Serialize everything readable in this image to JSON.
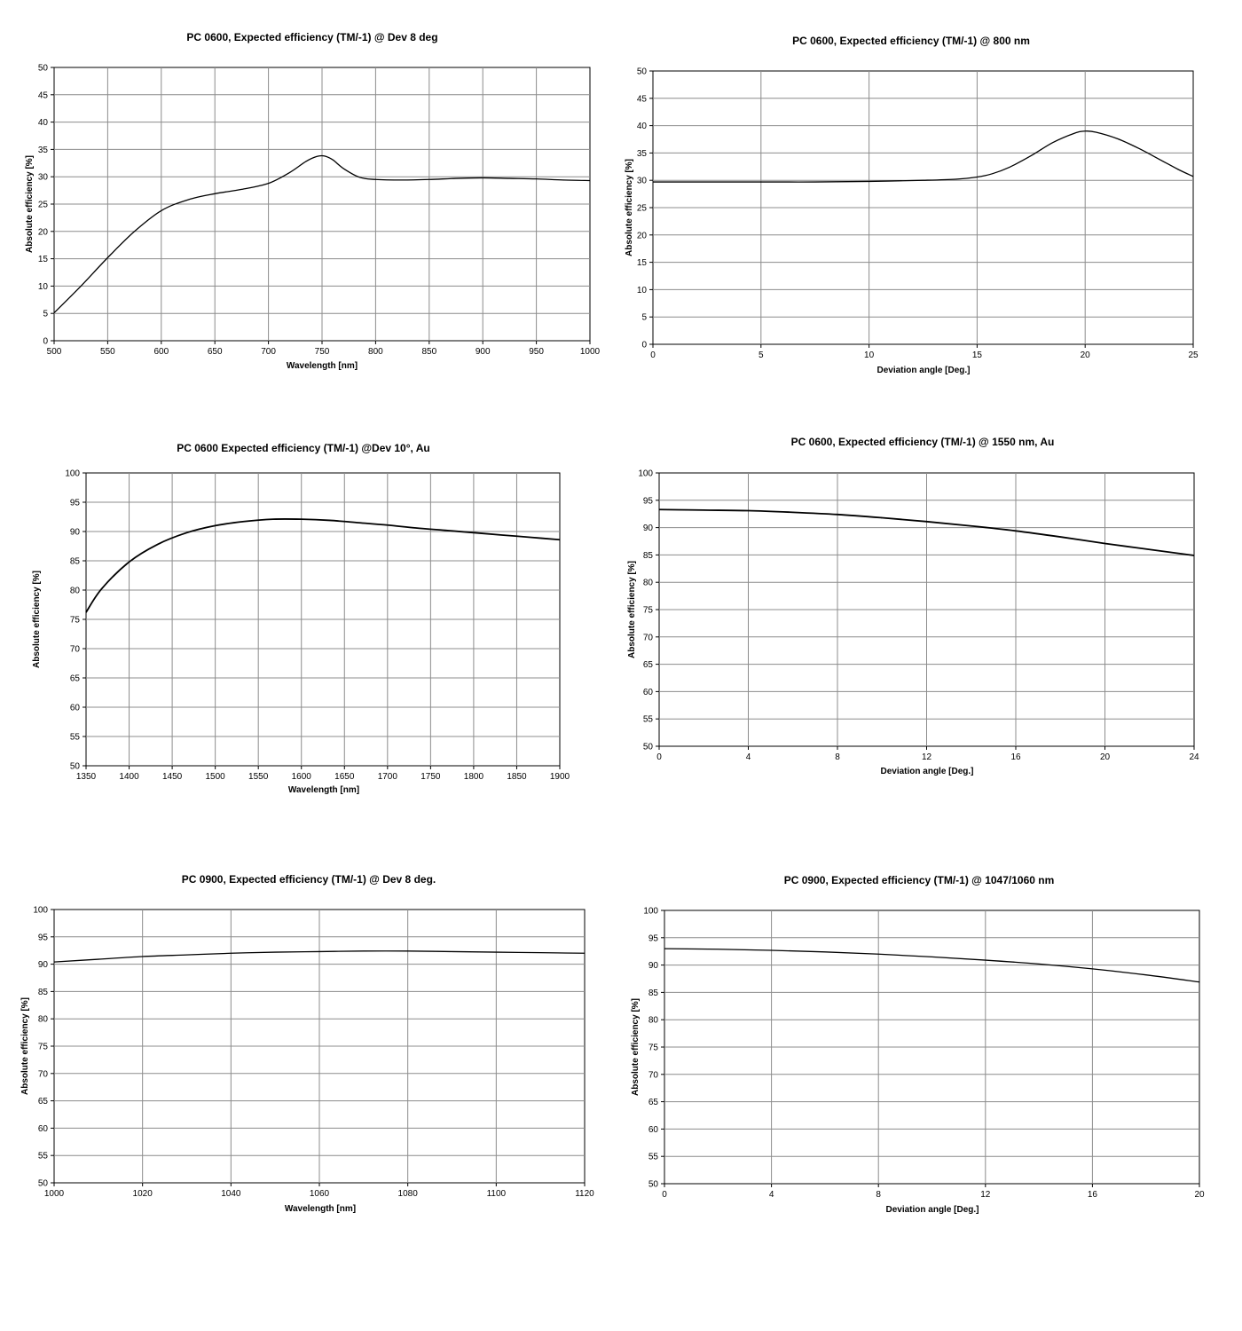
{
  "chart_data": [
    {
      "type": "line",
      "title": "PC 0600, Expected efficiency (TM/-1) @ Dev 8 deg",
      "xlabel": "Wavelength [nm]",
      "ylabel": "Absolute efficiency [%]",
      "xlim": [
        500,
        1000
      ],
      "ylim": [
        0,
        50
      ],
      "xticks": [
        "500",
        "550",
        "600",
        "650",
        "700",
        "750",
        "800",
        "850",
        "900",
        "950",
        "1000"
      ],
      "yticks": [
        "0",
        "5",
        "10",
        "15",
        "20",
        "25",
        "30",
        "35",
        "40",
        "45",
        "50"
      ],
      "grid": true,
      "series": [
        {
          "x": [
            500,
            525,
            550,
            575,
            600,
            625,
            650,
            675,
            700,
            720,
            735,
            745,
            752,
            760,
            770,
            785,
            800,
            825,
            850,
            875,
            900,
            925,
            950,
            975,
            1000
          ],
          "y": [
            5.1,
            10.0,
            15.2,
            20.0,
            23.8,
            25.8,
            26.9,
            27.7,
            28.8,
            30.8,
            32.8,
            33.7,
            33.8,
            33.1,
            31.5,
            29.9,
            29.5,
            29.4,
            29.5,
            29.7,
            29.8,
            29.7,
            29.6,
            29.4,
            29.3
          ]
        }
      ]
    },
    {
      "type": "line",
      "title": "PC 0600, Expected efficiency (TM/-1) @ 800 nm",
      "xlabel": "Deviation angle [Deg.]",
      "ylabel": "Absolute efficiency [%]",
      "xlim": [
        0,
        25
      ],
      "ylim": [
        0,
        50
      ],
      "xticks": [
        "0",
        "5",
        "10",
        "15",
        "20",
        "25"
      ],
      "yticks": [
        "0",
        "5",
        "10",
        "15",
        "20",
        "25",
        "30",
        "35",
        "40",
        "45",
        "50"
      ],
      "grid": true,
      "series": [
        {
          "x": [
            0,
            2.5,
            5,
            7.5,
            10,
            12.5,
            14,
            15,
            15.7,
            16.5,
            17.5,
            18.5,
            19.5,
            20,
            20.5,
            21.5,
            22.5,
            23.5,
            24.3,
            25
          ],
          "y": [
            29.7,
            29.7,
            29.7,
            29.7,
            29.8,
            30.0,
            30.2,
            30.6,
            31.2,
            32.4,
            34.5,
            36.9,
            38.6,
            39.0,
            38.8,
            37.6,
            35.8,
            33.7,
            32.0,
            30.7
          ]
        }
      ]
    },
    {
      "type": "line",
      "title": "PC 0600 Expected efficiency (TM/-1) @Dev 10°, Au",
      "xlabel": "Wavelength [nm]",
      "ylabel": "Absolute efficiency [%]",
      "xlim": [
        1350,
        1900
      ],
      "ylim": [
        50,
        100
      ],
      "xticks": [
        "1350",
        "1400",
        "1450",
        "1500",
        "1550",
        "1600",
        "1650",
        "1700",
        "1750",
        "1800",
        "1850",
        "1900"
      ],
      "yticks": [
        "50",
        "55",
        "60",
        "65",
        "70",
        "75",
        "80",
        "85",
        "90",
        "95",
        "100"
      ],
      "grid": true,
      "series": [
        {
          "x": [
            1350,
            1368,
            1400,
            1433,
            1467,
            1500,
            1533,
            1567,
            1600,
            1633,
            1667,
            1700,
            1733,
            1767,
            1800,
            1833,
            1867,
            1900
          ],
          "y": [
            76.2,
            80.2,
            84.8,
            87.8,
            89.8,
            91.0,
            91.7,
            92.1,
            92.1,
            91.9,
            91.5,
            91.1,
            90.6,
            90.2,
            89.8,
            89.4,
            89.0,
            88.6
          ]
        }
      ]
    },
    {
      "type": "line",
      "title": "PC 0600, Expected efficiency (TM/-1) @ 1550 nm, Au",
      "xlabel": "Deviation angle [Deg.]",
      "ylabel": "Absolute efficiency [%]",
      "xlim": [
        0,
        24
      ],
      "ylim": [
        50,
        100
      ],
      "xticks": [
        "0",
        "4",
        "8",
        "12",
        "16",
        "20",
        "24"
      ],
      "yticks": [
        "50",
        "55",
        "60",
        "65",
        "70",
        "75",
        "80",
        "85",
        "90",
        "95",
        "100"
      ],
      "grid": true,
      "series": [
        {
          "x": [
            0,
            2,
            4,
            6,
            8,
            10,
            12,
            14,
            16,
            18,
            20,
            22,
            24
          ],
          "y": [
            93.3,
            93.2,
            93.1,
            92.8,
            92.4,
            91.8,
            91.1,
            90.3,
            89.4,
            88.3,
            87.1,
            86.0,
            84.9
          ]
        }
      ]
    },
    {
      "type": "line",
      "title": "PC 0900, Expected efficiency (TM/-1) @ Dev 8 deg.",
      "xlabel": "Wavelength [nm]",
      "ylabel": "Absolute efficiency [%]",
      "xlim": [
        1000,
        1120
      ],
      "ylim": [
        50,
        100
      ],
      "xticks": [
        "1000",
        "1020",
        "1040",
        "1060",
        "1080",
        "1100",
        "1120"
      ],
      "yticks": [
        "50",
        "55",
        "60",
        "65",
        "70",
        "75",
        "80",
        "85",
        "90",
        "95",
        "100"
      ],
      "grid": true,
      "series": [
        {
          "x": [
            1000,
            1010,
            1020,
            1030,
            1040,
            1050,
            1060,
            1070,
            1080,
            1090,
            1100,
            1110,
            1120
          ],
          "y": [
            90.4,
            90.9,
            91.4,
            91.7,
            92.0,
            92.2,
            92.3,
            92.4,
            92.4,
            92.3,
            92.2,
            92.1,
            92.0
          ]
        }
      ]
    },
    {
      "type": "line",
      "title": "PC 0900, Expected efficiency (TM/-1) @ 1047/1060 nm",
      "xlabel": "Deviation angle [Deg.]",
      "ylabel": "Absolute efficiency [%]",
      "xlim": [
        0,
        20
      ],
      "ylim": [
        50,
        100
      ],
      "xticks": [
        "0",
        "4",
        "8",
        "12",
        "16",
        "20"
      ],
      "yticks": [
        "50",
        "55",
        "60",
        "65",
        "70",
        "75",
        "80",
        "85",
        "90",
        "95",
        "100"
      ],
      "grid": true,
      "series": [
        {
          "x": [
            0,
            2,
            4,
            6,
            8,
            10,
            12,
            14,
            16,
            18,
            20
          ],
          "y": [
            93.0,
            92.9,
            92.7,
            92.4,
            92.0,
            91.5,
            90.9,
            90.2,
            89.3,
            88.2,
            86.9
          ]
        }
      ]
    }
  ]
}
